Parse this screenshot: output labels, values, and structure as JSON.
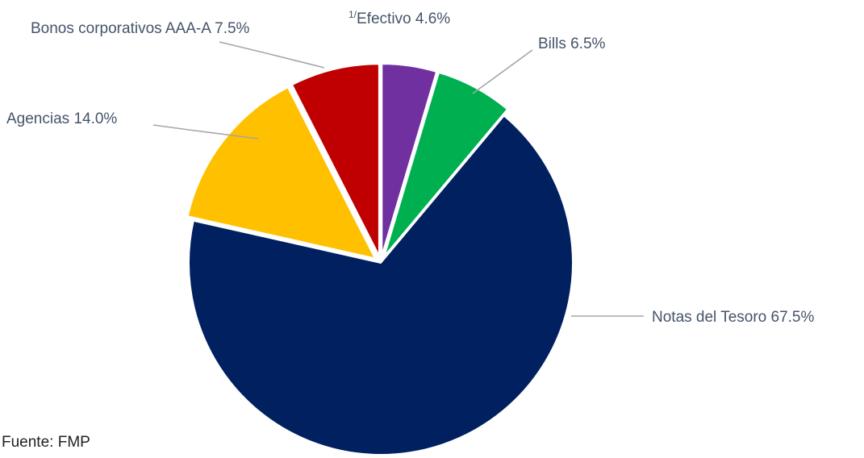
{
  "chart_data": {
    "type": "pie",
    "title": "",
    "slices": [
      {
        "superscript": "1/",
        "label": "Efectivo",
        "value": 4.6,
        "value_label": "4.6%",
        "color": "#7030a0"
      },
      {
        "label": "Bills",
        "value": 6.5,
        "value_label": "6.5%",
        "color": "#00b050"
      },
      {
        "label": "Notas del Tesoro",
        "value": 67.5,
        "value_label": "67.5%",
        "color": "#002060"
      },
      {
        "label": "Agencias",
        "value": 14.0,
        "value_label": "14.0%",
        "color": "#ffc000"
      },
      {
        "label": "Bonos corporativos AAA-A",
        "value": 7.5,
        "value_label": "7.5%",
        "color": "#c00000"
      }
    ],
    "start": "12 o'clock",
    "direction": "clockwise",
    "exploded": true,
    "legend": "none"
  },
  "source": "Fuente: FMP"
}
